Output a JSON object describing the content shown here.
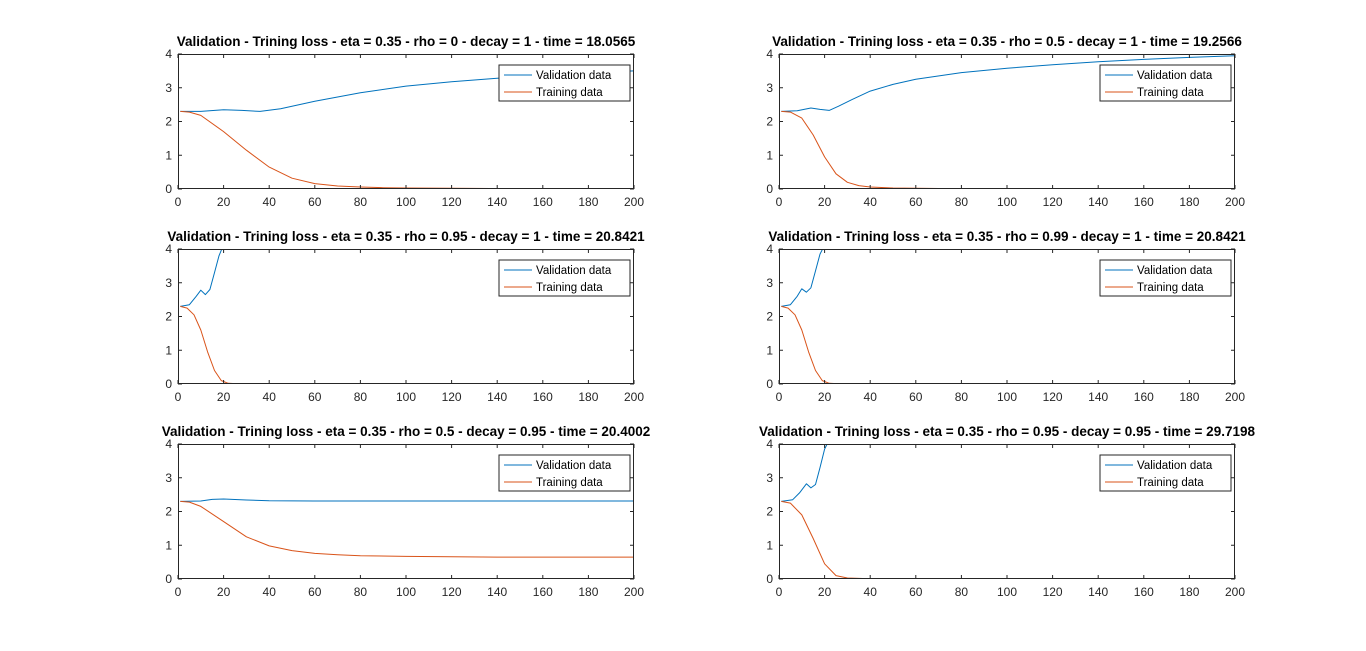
{
  "colors": {
    "validation": "#0072BD",
    "training": "#D95319",
    "axis": "#262626"
  },
  "chart_data": [
    {
      "type": "line",
      "title": "Validation - Trining loss - eta = 0.35 - rho = 0 - decay = 1 - time = 18.0565",
      "xlim": [
        0,
        200
      ],
      "ylim": [
        0,
        4
      ],
      "xticks": [
        "0",
        "20",
        "40",
        "60",
        "80",
        "100",
        "120",
        "140",
        "160",
        "180",
        "200"
      ],
      "yticks": [
        "0",
        "1",
        "2",
        "3",
        "4"
      ],
      "legend_position": "top-right",
      "series": [
        {
          "name": "Validation data",
          "x": [
            1,
            10,
            20,
            28,
            36,
            45,
            60,
            80,
            100,
            120,
            140,
            160,
            180,
            200
          ],
          "values": [
            2.3,
            2.3,
            2.35,
            2.33,
            2.3,
            2.38,
            2.6,
            2.85,
            3.05,
            3.18,
            3.28,
            3.36,
            3.44,
            3.5
          ]
        },
        {
          "name": "Training data",
          "x": [
            1,
            5,
            10,
            20,
            30,
            40,
            50,
            60,
            70,
            80,
            90,
            100,
            120,
            150,
            200
          ],
          "values": [
            2.3,
            2.28,
            2.18,
            1.7,
            1.15,
            0.65,
            0.32,
            0.16,
            0.09,
            0.06,
            0.04,
            0.03,
            0.02,
            0.01,
            0.01
          ]
        }
      ]
    },
    {
      "type": "line",
      "title": "Validation - Trining loss - eta = 0.35 - rho = 0.5 - decay = 1 - time = 19.2566",
      "xlim": [
        0,
        200
      ],
      "ylim": [
        0,
        4
      ],
      "xticks": [
        "0",
        "20",
        "40",
        "60",
        "80",
        "100",
        "120",
        "140",
        "160",
        "180",
        "200"
      ],
      "yticks": [
        "0",
        "1",
        "2",
        "3",
        "4"
      ],
      "legend_position": "top-right",
      "series": [
        {
          "name": "Validation data",
          "x": [
            1,
            8,
            14,
            18,
            22,
            26,
            32,
            40,
            50,
            60,
            80,
            100,
            120,
            140,
            160,
            180,
            200
          ],
          "values": [
            2.3,
            2.32,
            2.4,
            2.36,
            2.33,
            2.45,
            2.65,
            2.9,
            3.1,
            3.25,
            3.45,
            3.58,
            3.68,
            3.77,
            3.84,
            3.9,
            3.95
          ]
        },
        {
          "name": "Training data",
          "x": [
            1,
            5,
            10,
            15,
            20,
            25,
            30,
            35,
            40,
            50,
            60,
            80,
            100,
            150,
            200
          ],
          "values": [
            2.3,
            2.28,
            2.1,
            1.6,
            0.95,
            0.45,
            0.2,
            0.1,
            0.06,
            0.03,
            0.02,
            0.01,
            0.01,
            0.01,
            0.01
          ]
        }
      ]
    },
    {
      "type": "line",
      "title": "Validation - Trining loss - eta = 0.35 - rho = 0.95 - decay = 1 - time = 20.8421",
      "xlim": [
        0,
        200
      ],
      "ylim": [
        0,
        4
      ],
      "xticks": [
        "0",
        "20",
        "40",
        "60",
        "80",
        "100",
        "120",
        "140",
        "160",
        "180",
        "200"
      ],
      "yticks": [
        "0",
        "1",
        "2",
        "3",
        "4"
      ],
      "legend_position": "top-right",
      "series": [
        {
          "name": "Validation data",
          "x": [
            1,
            5,
            8,
            10,
            12,
            14,
            16,
            18,
            19.5
          ],
          "values": [
            2.3,
            2.35,
            2.6,
            2.78,
            2.65,
            2.8,
            3.3,
            3.8,
            4.05
          ]
        },
        {
          "name": "Training data",
          "x": [
            1,
            4,
            7,
            10,
            13,
            16,
            19,
            22,
            26,
            30,
            40,
            100,
            200
          ],
          "values": [
            2.3,
            2.25,
            2.05,
            1.6,
            0.95,
            0.4,
            0.1,
            0.02,
            0.01,
            0.01,
            0.01,
            0.01,
            0.01
          ]
        }
      ]
    },
    {
      "type": "line",
      "title": "Validation - Trining loss - eta = 0.35 - rho = 0.99 - decay = 1 - time = 20.8421",
      "xlim": [
        0,
        200
      ],
      "ylim": [
        0,
        4
      ],
      "xticks": [
        "0",
        "20",
        "40",
        "60",
        "80",
        "100",
        "120",
        "140",
        "160",
        "180",
        "200"
      ],
      "yticks": [
        "0",
        "1",
        "2",
        "3",
        "4"
      ],
      "legend_position": "top-right",
      "series": [
        {
          "name": "Validation data",
          "x": [
            1,
            5,
            8,
            10,
            12,
            14,
            16,
            18,
            19.5
          ],
          "values": [
            2.3,
            2.35,
            2.6,
            2.82,
            2.72,
            2.85,
            3.35,
            3.85,
            4.05
          ]
        },
        {
          "name": "Training data",
          "x": [
            1,
            4,
            7,
            10,
            13,
            16,
            19,
            22,
            26,
            30,
            40,
            100,
            200
          ],
          "values": [
            2.3,
            2.25,
            2.05,
            1.6,
            0.95,
            0.4,
            0.1,
            0.02,
            0.01,
            0.01,
            0.01,
            0.01,
            0.01
          ]
        }
      ]
    },
    {
      "type": "line",
      "title": "Validation - Trining loss - eta = 0.35 - rho = 0.5 - decay = 0.95 - time = 20.4002",
      "xlim": [
        0,
        200
      ],
      "ylim": [
        0,
        4
      ],
      "xticks": [
        "0",
        "20",
        "40",
        "60",
        "80",
        "100",
        "120",
        "140",
        "160",
        "180",
        "200"
      ],
      "yticks": [
        "0",
        "1",
        "2",
        "3",
        "4"
      ],
      "legend_position": "top-right",
      "series": [
        {
          "name": "Validation data",
          "x": [
            1,
            10,
            15,
            20,
            30,
            40,
            60,
            100,
            150,
            200
          ],
          "values": [
            2.3,
            2.31,
            2.36,
            2.37,
            2.34,
            2.32,
            2.31,
            2.31,
            2.31,
            2.31
          ]
        },
        {
          "name": "Training data",
          "x": [
            1,
            5,
            10,
            20,
            30,
            40,
            50,
            60,
            70,
            80,
            100,
            120,
            140,
            160,
            180,
            200
          ],
          "values": [
            2.3,
            2.28,
            2.15,
            1.7,
            1.25,
            0.98,
            0.84,
            0.76,
            0.72,
            0.69,
            0.67,
            0.66,
            0.65,
            0.65,
            0.65,
            0.65
          ]
        }
      ]
    },
    {
      "type": "line",
      "title": "Validation - Trining loss - eta = 0.35 - rho = 0.95 - decay = 0.95 - time = 29.7198",
      "xlim": [
        0,
        200
      ],
      "ylim": [
        0,
        4
      ],
      "xticks": [
        "0",
        "20",
        "40",
        "60",
        "80",
        "100",
        "120",
        "140",
        "160",
        "180",
        "200"
      ],
      "yticks": [
        "0",
        "1",
        "2",
        "3",
        "4"
      ],
      "legend_position": "top-right",
      "series": [
        {
          "name": "Validation data",
          "x": [
            1,
            6,
            9,
            12,
            14,
            16,
            18,
            20,
            21.5
          ],
          "values": [
            2.3,
            2.35,
            2.55,
            2.82,
            2.7,
            2.8,
            3.3,
            3.85,
            4.05
          ]
        },
        {
          "name": "Training data",
          "x": [
            1,
            5,
            10,
            15,
            20,
            25,
            30,
            40,
            100,
            200
          ],
          "values": [
            2.3,
            2.25,
            1.9,
            1.2,
            0.45,
            0.1,
            0.03,
            0.01,
            0.01,
            0.01
          ]
        }
      ]
    }
  ]
}
